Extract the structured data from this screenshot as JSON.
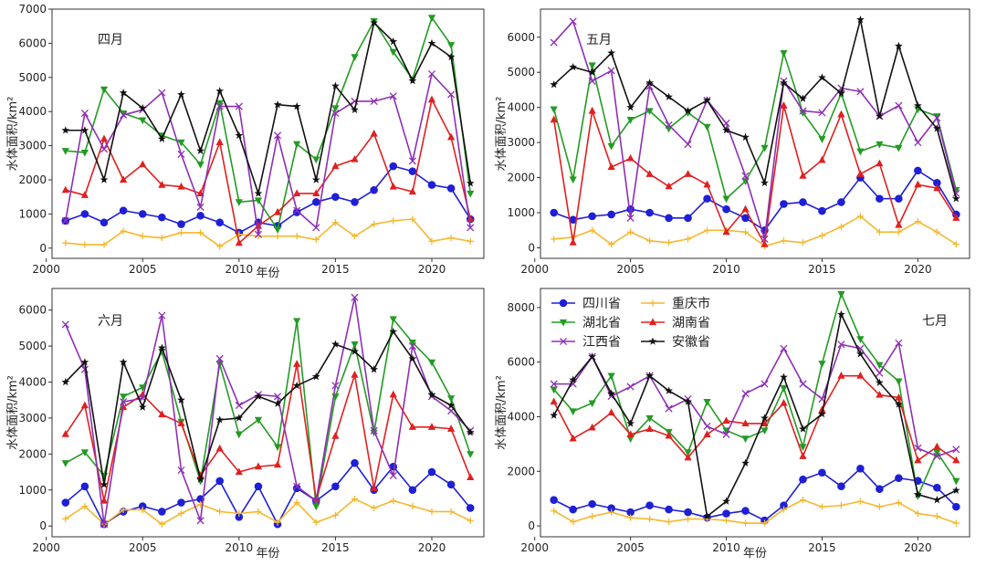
{
  "series_meta": [
    {
      "name": "四川省",
      "color": "#1f1fd6",
      "marker": "circle"
    },
    {
      "name": "重庆市",
      "color": "#f5b82e",
      "marker": "plus"
    },
    {
      "name": "湖北省",
      "color": "#239b23",
      "marker": "tri-down"
    },
    {
      "name": "湖南省",
      "color": "#e02020",
      "marker": "tri-up"
    },
    {
      "name": "江西省",
      "color": "#8e2fb5",
      "marker": "x"
    },
    {
      "name": "安徽省",
      "color": "#111111",
      "marker": "star"
    }
  ],
  "chart_data": [
    {
      "type": "line",
      "title": "四月",
      "xlabel": "年份",
      "ylabel": "水体面积/km²",
      "xlim": [
        2000.3,
        2022.7
      ],
      "ylim": [
        -300,
        7000
      ],
      "xticks": [
        2000,
        2005,
        2010,
        2015,
        2020
      ],
      "yticks": [
        0,
        1000,
        2000,
        3000,
        4000,
        5000,
        6000,
        7000
      ],
      "x": [
        2001,
        2002,
        2003,
        2004,
        2005,
        2006,
        2007,
        2008,
        2009,
        2010,
        2011,
        2012,
        2013,
        2014,
        2015,
        2016,
        2017,
        2018,
        2019,
        2020,
        2021,
        2022
      ],
      "series": [
        {
          "name": "四川省",
          "values": [
            800,
            1000,
            750,
            1100,
            1000,
            900,
            700,
            950,
            750,
            450,
            750,
            650,
            1050,
            1350,
            1500,
            1350,
            1700,
            2400,
            2250,
            1850,
            1750,
            850
          ]
        },
        {
          "name": "重庆市",
          "values": [
            150,
            100,
            100,
            500,
            350,
            300,
            450,
            450,
            50,
            400,
            350,
            350,
            350,
            250,
            750,
            350,
            700,
            800,
            850,
            200,
            300,
            200
          ]
        },
        {
          "name": "湖北省",
          "values": [
            2850,
            2800,
            4650,
            3950,
            3750,
            3300,
            3100,
            2450,
            4250,
            1350,
            1400,
            550,
            3050,
            2600,
            4100,
            5600,
            6650,
            5750,
            4950,
            6750,
            5950,
            1600
          ]
        },
        {
          "name": "湖南省",
          "values": [
            1700,
            1550,
            3200,
            2000,
            2450,
            1850,
            1800,
            1600,
            3100,
            150,
            650,
            1050,
            1600,
            1600,
            2400,
            2600,
            3350,
            1800,
            1650,
            4350,
            3250,
            850
          ]
        },
        {
          "name": "江西省",
          "values": [
            800,
            3950,
            2900,
            3900,
            4050,
            4550,
            2750,
            1200,
            4150,
            4150,
            400,
            3300,
            1100,
            600,
            3950,
            4300,
            4300,
            4450,
            2550,
            5100,
            4500,
            600
          ]
        },
        {
          "name": "安徽省",
          "values": [
            3450,
            3450,
            2000,
            4550,
            4100,
            3200,
            4500,
            2850,
            4600,
            3300,
            1600,
            4200,
            4150,
            2000,
            4750,
            4050,
            6600,
            6050,
            4900,
            6000,
            5600,
            1900
          ]
        }
      ]
    },
    {
      "type": "line",
      "title": "五月",
      "xlabel": "",
      "ylabel": "水体面积/km²",
      "xlim": [
        2000.3,
        2022.7
      ],
      "ylim": [
        -300,
        6800
      ],
      "xticks": [
        2000,
        2005,
        2010,
        2015,
        2020
      ],
      "yticks": [
        0,
        1000,
        2000,
        3000,
        4000,
        5000,
        6000
      ],
      "x": [
        2001,
        2002,
        2003,
        2004,
        2005,
        2006,
        2007,
        2008,
        2009,
        2010,
        2011,
        2012,
        2013,
        2014,
        2015,
        2016,
        2017,
        2018,
        2019,
        2020,
        2021,
        2022
      ],
      "series": [
        {
          "name": "四川省",
          "values": [
            1000,
            800,
            900,
            950,
            1100,
            1000,
            850,
            850,
            1400,
            1100,
            850,
            500,
            1250,
            1300,
            1050,
            1300,
            2000,
            1400,
            1400,
            2200,
            1850,
            950
          ]
        },
        {
          "name": "重庆市",
          "values": [
            250,
            300,
            500,
            100,
            450,
            200,
            150,
            250,
            500,
            500,
            450,
            50,
            200,
            150,
            350,
            600,
            900,
            450,
            450,
            750,
            450,
            100
          ]
        },
        {
          "name": "湖北省",
          "values": [
            3950,
            1950,
            5200,
            2900,
            3650,
            3900,
            3400,
            3850,
            3450,
            1400,
            1900,
            2850,
            5550,
            3850,
            3100,
            4400,
            2750,
            2950,
            2850,
            3950,
            3750,
            1650
          ]
        },
        {
          "name": "湖南省",
          "values": [
            3650,
            150,
            3900,
            2300,
            2550,
            2100,
            1750,
            2100,
            1800,
            450,
            1100,
            100,
            4050,
            2050,
            2500,
            3800,
            2100,
            2400,
            650,
            1800,
            1700,
            850
          ]
        },
        {
          "name": "江西省",
          "values": [
            5850,
            6450,
            4750,
            5050,
            850,
            4600,
            3500,
            2950,
            4200,
            3550,
            2050,
            250,
            4750,
            3900,
            3850,
            4550,
            4450,
            3750,
            4050,
            3000,
            3700,
            1550
          ]
        },
        {
          "name": "安徽省",
          "values": [
            4650,
            5150,
            5000,
            5550,
            4000,
            4700,
            4300,
            3900,
            4200,
            3350,
            3150,
            1850,
            4700,
            4250,
            4850,
            4400,
            6500,
            3750,
            5750,
            4050,
            3400,
            1400
          ]
        }
      ]
    },
    {
      "type": "line",
      "title": "六月",
      "xlabel": "年份",
      "ylabel": "水体面积/km²",
      "xlim": [
        2000.3,
        2022.7
      ],
      "ylim": [
        -300,
        6600
      ],
      "xticks": [
        2000,
        2005,
        2010,
        2015,
        2020
      ],
      "yticks": [
        0,
        1000,
        2000,
        3000,
        4000,
        5000,
        6000
      ],
      "x": [
        2001,
        2002,
        2003,
        2004,
        2005,
        2006,
        2007,
        2008,
        2009,
        2010,
        2011,
        2012,
        2013,
        2014,
        2015,
        2016,
        2017,
        2018,
        2019,
        2020,
        2021,
        2022
      ],
      "series": [
        {
          "name": "四川省",
          "values": [
            650,
            1100,
            50,
            400,
            550,
            400,
            650,
            750,
            1250,
            250,
            1100,
            50,
            1050,
            700,
            1100,
            1750,
            1000,
            1650,
            1000,
            1500,
            1150,
            500
          ]
        },
        {
          "name": "重庆市",
          "values": [
            200,
            550,
            50,
            450,
            450,
            50,
            350,
            600,
            400,
            350,
            400,
            100,
            650,
            100,
            300,
            750,
            500,
            700,
            550,
            400,
            400,
            150
          ]
        },
        {
          "name": "湖北省",
          "values": [
            1750,
            2050,
            1400,
            3600,
            3850,
            4850,
            2900,
            1250,
            4500,
            2550,
            2950,
            2200,
            5700,
            550,
            3600,
            5050,
            2600,
            5750,
            5100,
            4550,
            3550,
            2000
          ]
        },
        {
          "name": "湖南省",
          "values": [
            2550,
            3350,
            700,
            3300,
            3650,
            3100,
            2850,
            1400,
            2150,
            1500,
            1650,
            1700,
            4500,
            750,
            2500,
            4200,
            1050,
            3650,
            2750,
            2750,
            2700,
            1350
          ]
        },
        {
          "name": "江西省",
          "values": [
            5600,
            4350,
            50,
            3450,
            3550,
            5850,
            1550,
            150,
            4650,
            3350,
            3650,
            3600,
            1100,
            700,
            3900,
            6350,
            2650,
            1400,
            5000,
            3600,
            3200,
            2650
          ]
        },
        {
          "name": "安徽省",
          "values": [
            4000,
            4550,
            1150,
            4550,
            3300,
            4950,
            3500,
            1300,
            2950,
            3000,
            3600,
            3400,
            3900,
            4150,
            5050,
            4850,
            4350,
            5400,
            4650,
            3650,
            3350,
            2600
          ]
        }
      ]
    },
    {
      "type": "line",
      "title": "七月",
      "xlabel": "年份",
      "ylabel": "水体面积/km²",
      "xlim": [
        2000.3,
        2022.7
      ],
      "ylim": [
        -400,
        8700
      ],
      "xticks": [
        2000,
        2005,
        2010,
        2015,
        2020
      ],
      "yticks": [
        0,
        2000,
        4000,
        6000,
        8000
      ],
      "legend": "top-left",
      "x": [
        2001,
        2002,
        2003,
        2004,
        2005,
        2006,
        2007,
        2008,
        2009,
        2010,
        2011,
        2012,
        2013,
        2014,
        2015,
        2016,
        2017,
        2018,
        2019,
        2020,
        2021,
        2022
      ],
      "series": [
        {
          "name": "四川省",
          "values": [
            950,
            600,
            800,
            650,
            500,
            750,
            600,
            500,
            300,
            450,
            550,
            200,
            750,
            1700,
            1950,
            1450,
            2100,
            1350,
            1750,
            1650,
            1400,
            700
          ]
        },
        {
          "name": "重庆市",
          "values": [
            550,
            150,
            350,
            500,
            300,
            250,
            150,
            250,
            250,
            200,
            100,
            100,
            600,
            950,
            700,
            750,
            900,
            700,
            850,
            450,
            350,
            100
          ]
        },
        {
          "name": "湖北省",
          "values": [
            5000,
            4200,
            4500,
            5500,
            3200,
            3950,
            3450,
            2700,
            4550,
            3500,
            3200,
            3500,
            5050,
            2900,
            5950,
            8500,
            6850,
            5900,
            5300,
            1100,
            2700,
            1650
          ]
        },
        {
          "name": "湖南省",
          "values": [
            4550,
            3200,
            3600,
            4150,
            3350,
            3550,
            3300,
            2500,
            3350,
            3850,
            3750,
            3750,
            4500,
            2550,
            4250,
            5500,
            5500,
            4800,
            4700,
            2400,
            2900,
            2400
          ]
        },
        {
          "name": "江西省",
          "values": [
            5200,
            5200,
            6200,
            4750,
            5100,
            5500,
            4300,
            4650,
            3650,
            3350,
            4850,
            5200,
            6500,
            5200,
            4650,
            6650,
            6500,
            5600,
            6700,
            2850,
            2550,
            2800
          ]
        },
        {
          "name": "安徽省",
          "values": [
            4050,
            5350,
            6200,
            4850,
            3750,
            5500,
            4950,
            4550,
            350,
            900,
            2300,
            3950,
            5450,
            3550,
            4100,
            7750,
            6300,
            5250,
            4450,
            1150,
            950,
            1300
          ]
        }
      ]
    }
  ]
}
